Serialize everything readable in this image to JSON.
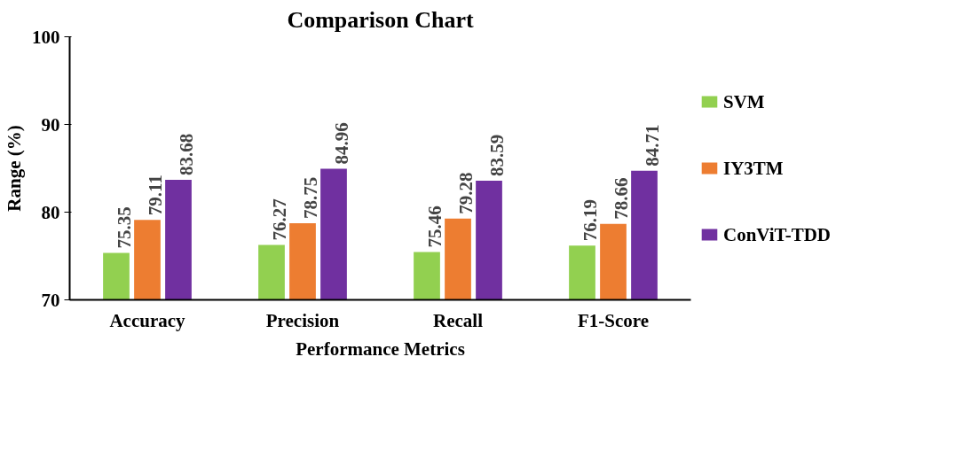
{
  "chart_data": {
    "type": "bar",
    "title": "Comparison Chart",
    "xlabel": "Performance Metrics",
    "ylabel": "Range (%)",
    "categories": [
      "Accuracy",
      "Precision",
      "Recall",
      "F1-Score"
    ],
    "series": [
      {
        "name": "SVM",
        "color": "#92d050",
        "values": [
          75.35,
          76.27,
          75.46,
          76.19
        ]
      },
      {
        "name": "IY3TM",
        "color": "#ed7d31",
        "values": [
          79.11,
          78.75,
          79.28,
          78.66
        ]
      },
      {
        "name": "ConViT-TDD",
        "color": "#7030a0",
        "values": [
          83.68,
          84.96,
          83.59,
          84.71
        ]
      }
    ],
    "ylim": [
      70,
      100
    ],
    "yticks": [
      70,
      80,
      90,
      100
    ],
    "grid": false,
    "legend": "right",
    "data_labels": true
  }
}
